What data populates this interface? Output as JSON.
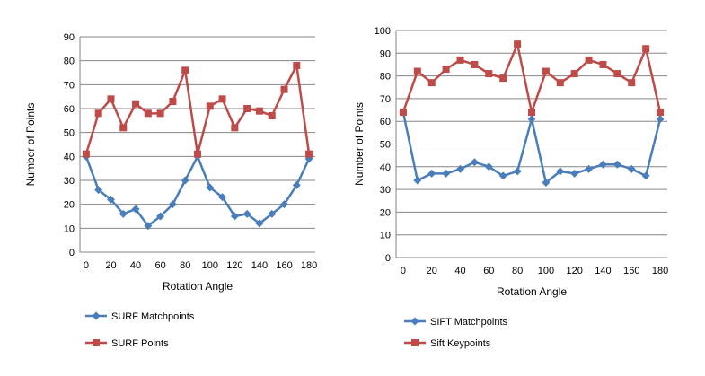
{
  "chart_data": [
    {
      "type": "line",
      "title": "",
      "xlabel": "Rotation Angle",
      "ylabel": "Number of Points",
      "x": [
        0,
        10,
        20,
        30,
        40,
        50,
        60,
        70,
        80,
        90,
        100,
        110,
        120,
        130,
        140,
        150,
        160,
        170,
        180
      ],
      "x_ticks": [
        0,
        20,
        40,
        60,
        80,
        100,
        120,
        140,
        160,
        180
      ],
      "xlim": [
        -5,
        185
      ],
      "ylim": [
        0,
        90
      ],
      "y_ticks": [
        0,
        10,
        20,
        30,
        40,
        50,
        60,
        70,
        80,
        90
      ],
      "grid": true,
      "legend_position": "bottom",
      "series": [
        {
          "name": "SURF Matchpoints",
          "color": "#4a7ebb",
          "marker": "diamond",
          "values": [
            40,
            26,
            22,
            16,
            18,
            11,
            15,
            20,
            30,
            40,
            27,
            23,
            15,
            16,
            12,
            16,
            20,
            28,
            39
          ]
        },
        {
          "name": "SURF Points",
          "color": "#be4b48",
          "marker": "square",
          "values": [
            41,
            58,
            64,
            52,
            62,
            58,
            58,
            63,
            76,
            41,
            61,
            64,
            52,
            60,
            59,
            57,
            68,
            78,
            41
          ]
        }
      ]
    },
    {
      "type": "line",
      "title": "",
      "xlabel": "Rotation Angle",
      "ylabel": "Number of Points",
      "x": [
        0,
        10,
        20,
        30,
        40,
        50,
        60,
        70,
        80,
        90,
        100,
        110,
        120,
        130,
        140,
        150,
        160,
        170,
        180
      ],
      "x_ticks": [
        0,
        20,
        40,
        60,
        80,
        100,
        120,
        140,
        160,
        180
      ],
      "xlim": [
        -5,
        185
      ],
      "ylim": [
        0,
        100
      ],
      "y_ticks": [
        0,
        10,
        20,
        30,
        40,
        50,
        60,
        70,
        80,
        90,
        100
      ],
      "grid": true,
      "legend_position": "bottom",
      "series": [
        {
          "name": "SIFT Matchpoints",
          "color": "#4a7ebb",
          "marker": "diamond",
          "values": [
            64,
            34,
            37,
            37,
            39,
            42,
            40,
            36,
            38,
            61,
            33,
            38,
            37,
            39,
            41,
            41,
            39,
            36,
            61
          ]
        },
        {
          "name": "Sift Keypoints",
          "color": "#be4b48",
          "marker": "square",
          "values": [
            64,
            82,
            77,
            83,
            87,
            85,
            81,
            79,
            94,
            64,
            82,
            77,
            81,
            87,
            85,
            81,
            77,
            92,
            64
          ]
        }
      ]
    }
  ]
}
